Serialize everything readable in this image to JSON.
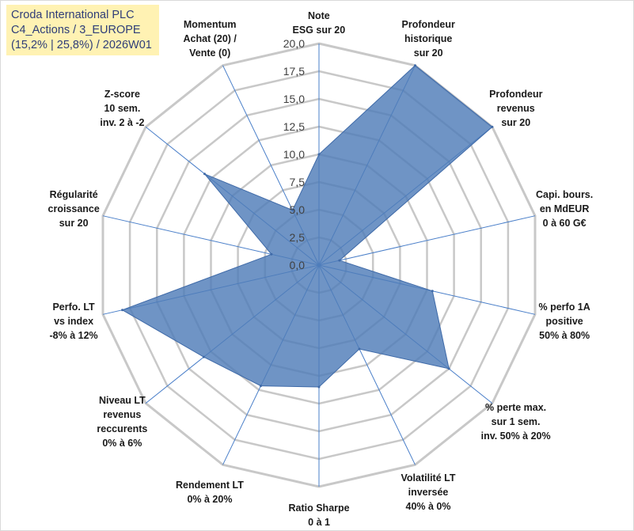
{
  "title": {
    "lines": [
      "Croda International PLC",
      "C4_Actions / 3_EUROPE",
      "(15,2% | 25,8%) / 2026W01"
    ]
  },
  "colors": {
    "series_fill": "#4f7cb8",
    "series_stroke": "#3f6aa8",
    "grid": "#c8c8c8",
    "spoke": "#4a7fc9",
    "title_bg": "#fff2b3",
    "title_text": "#2e3d78"
  },
  "chart_data": {
    "type": "radar",
    "title": "Croda International PLC",
    "rmin": 0,
    "rmax": 20,
    "tick_step": 2.5,
    "tick_labels": [
      "0,0",
      "2,5",
      "5,0",
      "7,5",
      "10,0",
      "12,5",
      "15,0",
      "17,5",
      "20,0"
    ],
    "axes": [
      {
        "label_lines": [
          "Note",
          "ESG sur 20"
        ],
        "value": 10.0
      },
      {
        "label_lines": [
          "Profondeur",
          "historique",
          "sur 20"
        ],
        "value": 20.0
      },
      {
        "label_lines": [
          "Profondeur",
          "revenus",
          "sur 20"
        ],
        "value": 20.0
      },
      {
        "label_lines": [
          "Capi. bours.",
          "en MdEUR",
          "0 à 60 G€"
        ],
        "value": 1.9
      },
      {
        "label_lines": [
          "% perfo 1A",
          "positive",
          "50% à 80%"
        ],
        "value": 10.5
      },
      {
        "label_lines": [
          "% perte max.",
          "sur 1 sem.",
          "inv. 50% à 20%"
        ],
        "value": 15.0
      },
      {
        "label_lines": [
          "Volatilité LT",
          "inversée",
          "40% à 0%"
        ],
        "value": 8.4
      },
      {
        "label_lines": [
          "Ratio Sharpe",
          "0 à 1"
        ],
        "value": 11.0
      },
      {
        "label_lines": [
          "Rendement LT",
          "0% à 20%"
        ],
        "value": 12.1
      },
      {
        "label_lines": [
          "Niveau LT",
          "revenus",
          "reccurents",
          "0% à 6%"
        ],
        "value": 13.3
      },
      {
        "label_lines": [
          "Perfo. LT",
          "vs index",
          "-8% à 12%"
        ],
        "value": 18.2
      },
      {
        "label_lines": [
          "Régularité",
          "croissance",
          "sur 20"
        ],
        "value": 4.4
      },
      {
        "label_lines": [
          "Z-score",
          "10 sem.",
          "inv. 2 à -2"
        ],
        "value": 13.2
      },
      {
        "label_lines": [
          "Momentum",
          "Achat (20) /",
          "Vente (0)"
        ],
        "value": 5.5
      }
    ]
  }
}
